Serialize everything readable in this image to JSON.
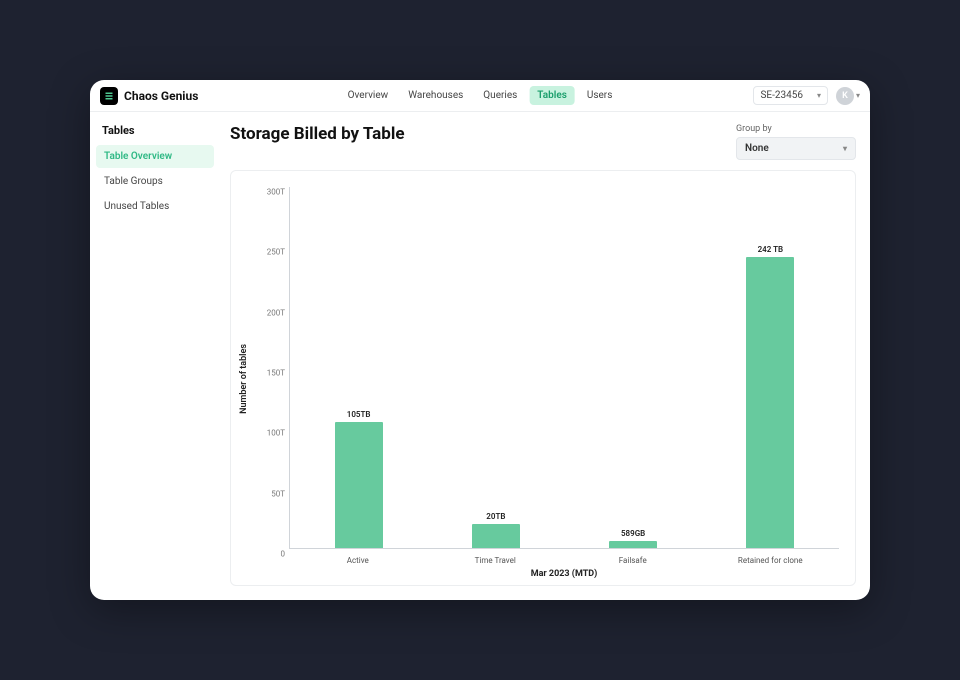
{
  "brand": {
    "name": "Chaos Genius"
  },
  "nav": {
    "items": [
      {
        "label": "Overview"
      },
      {
        "label": "Warehouses"
      },
      {
        "label": "Queries"
      },
      {
        "label": "Tables",
        "active": true
      },
      {
        "label": "Users"
      }
    ]
  },
  "account_selector": {
    "value": "SE-23456"
  },
  "user": {
    "initial": "K"
  },
  "sidebar": {
    "title": "Tables",
    "items": [
      {
        "label": "Table Overview",
        "active": true
      },
      {
        "label": "Table Groups"
      },
      {
        "label": "Unused Tables"
      }
    ]
  },
  "page": {
    "title": "Storage Billed by Table"
  },
  "groupby": {
    "label": "Group by",
    "value": "None"
  },
  "chart": {
    "type": "bar",
    "ylabel": "Number of tables",
    "xaxis_label": "Mar 2023 (MTD)",
    "ylim_max": 300,
    "ytick_step": 50,
    "yticks": [
      "0",
      "50T",
      "100T",
      "150T",
      "200T",
      "250T",
      "300T"
    ],
    "bar_color": "#67ca9e",
    "background_color": "#ffffff",
    "axis_color": "#d0d4d9",
    "tick_font_size": 8,
    "label_font_size": 9,
    "value_font_size": 8,
    "bars": [
      {
        "category": "Active",
        "value": 105,
        "display": "105TB"
      },
      {
        "category": "Time Travel",
        "value": 20,
        "display": "20TB"
      },
      {
        "category": "Failsafe",
        "value": 0.589,
        "display": "589GB"
      },
      {
        "category": "Retained for clone",
        "value": 242,
        "display": "242 TB"
      }
    ]
  }
}
